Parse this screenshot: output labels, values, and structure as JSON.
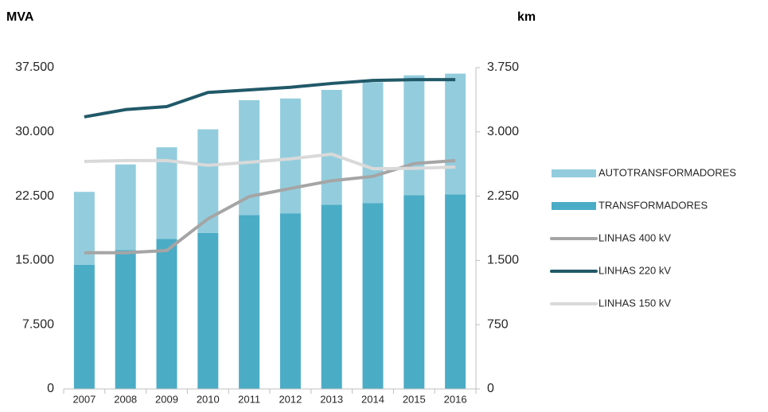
{
  "chart_data": {
    "type": "bar",
    "y_label": "MVA",
    "y2_label": "km",
    "categories": [
      "2007",
      "2008",
      "2009",
      "2010",
      "2011",
      "2012",
      "2013",
      "2014",
      "2015",
      "2016"
    ],
    "series": [
      {
        "name": "AUTOTRANSFORMADORES",
        "type": "bar",
        "color": "#93cddd",
        "values": [
          8500,
          10000,
          10700,
          12100,
          13400,
          13400,
          13400,
          14100,
          14000,
          14100
        ]
      },
      {
        "name": "TRANSFORMADORES",
        "type": "bar",
        "color": "#4bacc6",
        "values": [
          14500,
          16200,
          17500,
          18200,
          20300,
          20500,
          21500,
          21700,
          22600,
          22700
        ]
      },
      {
        "name": "LINHAS 400 kV",
        "type": "line",
        "axis": "y2",
        "color": "#a5a5a5",
        "values": [
          1590,
          1590,
          1615,
          1985,
          2245,
          2340,
          2430,
          2480,
          2630,
          2665
        ]
      },
      {
        "name": "LINHAS 220 kV",
        "type": "line",
        "axis": "y2",
        "color": "#215968",
        "values": [
          3175,
          3260,
          3295,
          3460,
          3490,
          3520,
          3565,
          3600,
          3610,
          3610
        ]
      },
      {
        "name": "LINHAS 150 kV",
        "type": "line",
        "axis": "y2",
        "color": "#d9d9d9",
        "values": [
          2655,
          2665,
          2665,
          2610,
          2645,
          2685,
          2740,
          2570,
          2575,
          2590
        ]
      }
    ],
    "ylim": [
      0,
      37500
    ],
    "yticks": [
      0,
      {
        "value": 7500,
        "label": "7.500"
      },
      {
        "value": 15000,
        "label": "15.000"
      },
      {
        "value": 22500,
        "label": "22.500"
      },
      {
        "value": 30000,
        "label": "30.000"
      },
      {
        "value": 37500,
        "label": "37.500"
      }
    ],
    "y2lim": [
      0,
      3750
    ],
    "y2ticks": [
      0,
      750,
      {
        "value": 1500,
        "label": "1.500"
      },
      {
        "value": 2250,
        "label": "2.250"
      },
      {
        "value": 3000,
        "label": "3.000"
      },
      {
        "value": 3750,
        "label": "3.750"
      }
    ],
    "legend": "right",
    "grid": false
  }
}
